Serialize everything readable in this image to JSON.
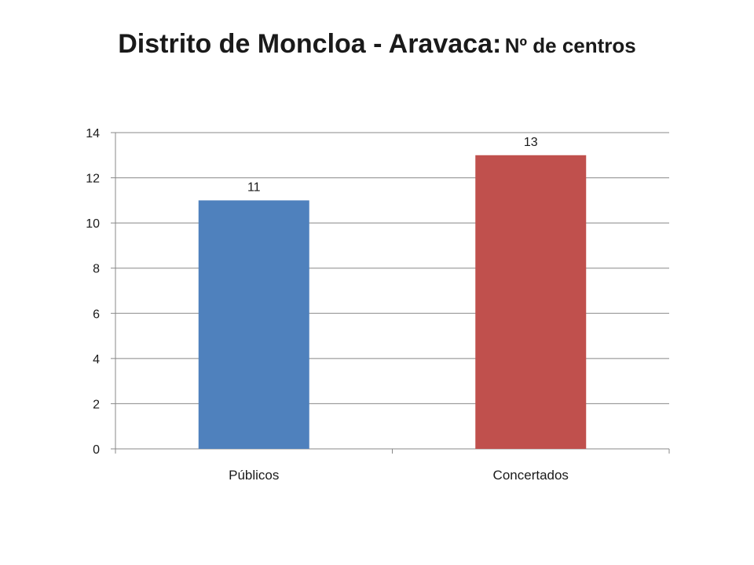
{
  "slide": {
    "title_main": "Distrito de Moncloa - Aravaca:",
    "title_sub": "Nº de centros"
  },
  "chart_data": {
    "type": "bar",
    "title": "Distrito de Moncloa - Aravaca: Nº de centros",
    "categories": [
      "Públicos",
      "Concertados"
    ],
    "values": [
      11,
      13
    ],
    "colors": [
      "#4f81bd",
      "#c0504d"
    ],
    "gridline_color": "#888888",
    "ylim": [
      0,
      14
    ],
    "yticks": [
      0,
      2,
      4,
      6,
      8,
      10,
      12,
      14
    ],
    "grid": true,
    "legend": false,
    "data_labels": true,
    "xlabel": "",
    "ylabel": ""
  }
}
